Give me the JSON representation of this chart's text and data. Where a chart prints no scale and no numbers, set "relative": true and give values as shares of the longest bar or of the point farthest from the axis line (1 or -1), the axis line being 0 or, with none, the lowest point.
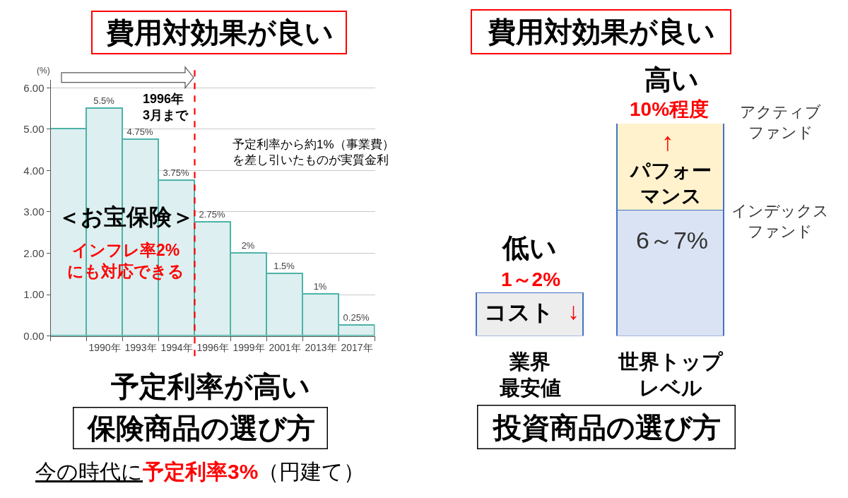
{
  "chart_data": [
    {
      "type": "bar",
      "title": "費用対効果が良い",
      "ylabel": "(%)",
      "categories": [
        null,
        "1990年",
        "1993年",
        "1994年",
        "1996年",
        "1999年",
        "2001年",
        "2013年",
        "2017年"
      ],
      "values": [
        5,
        5.5,
        4.75,
        3.75,
        2.75,
        2,
        1.5,
        1,
        0.25
      ],
      "color": "#ddeff0",
      "value_labels": [
        null,
        "5.5%",
        "4.75%",
        "3.75%",
        "2.75%",
        "2%",
        "1.5%",
        "1%",
        "0.25%"
      ],
      "ylim": [
        0,
        6.2
      ],
      "yticks": [
        {
          "value": 0,
          "label": "0.00"
        },
        {
          "value": 1,
          "label": "1.00"
        },
        {
          "value": 2,
          "label": "2.00"
        },
        {
          "value": 3,
          "label": "3.00"
        },
        {
          "value": 4,
          "label": "4.00"
        },
        {
          "value": 5,
          "label": "5.00"
        },
        {
          "value": 6,
          "label": "6.00"
        }
      ],
      "grid": "y",
      "ref_lines": [
        {
          "axis": "x",
          "value": "1996年",
          "label": "1996年3月まで",
          "color": "#ff0000",
          "line_style": "dashed"
        }
      ],
      "annotations": [
        "＜お宝保険＞",
        "インフレ率2%にも対応できる",
        "予定利率から約1%（事業費）を差し引いたものが実質金利",
        "予定利率が高い",
        "保険商品の選び方",
        "今の時代に",
        "予定利率3%",
        "（円建て）"
      ]
    },
    {
      "type": "bar",
      "relative": true,
      "stacked": true,
      "title": "費用対効果が良い",
      "categories": [
        "業界最安値",
        "世界トップレベル"
      ],
      "series": [
        {
          "color": "#ededed",
          "values": [
            0.2,
            null
          ]
        },
        {
          "name": "インデックスファンド",
          "color": "#dae3f3",
          "values": [
            null,
            0.59
          ]
        },
        {
          "name": "アクティブファンド",
          "color": "#fff2cc",
          "values": [
            null,
            0.41
          ]
        }
      ],
      "annotations": [
        "低い",
        "1～2%",
        "コスト",
        "↓",
        "高い",
        "10%程度",
        "↑",
        "パフォーマンス",
        "6～7%",
        "投資商品の選び方"
      ]
    }
  ]
}
